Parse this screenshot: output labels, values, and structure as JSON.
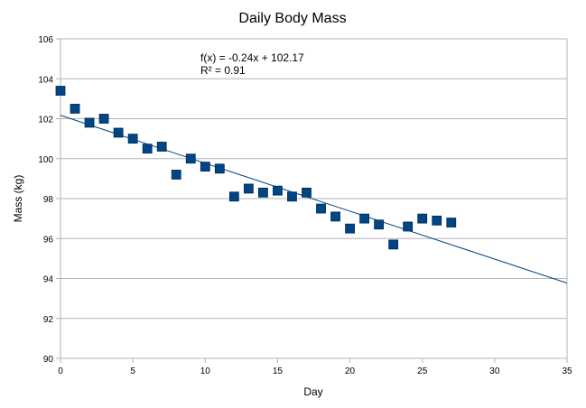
{
  "chart_data": {
    "type": "scatter",
    "title": "Daily Body Mass",
    "xlabel": "Day",
    "ylabel": "Mass (kg)",
    "xlim": [
      0,
      35
    ],
    "ylim": [
      90,
      106
    ],
    "x_ticks": [
      0,
      5,
      10,
      15,
      20,
      25,
      30,
      35
    ],
    "y_ticks": [
      90,
      92,
      94,
      96,
      98,
      100,
      102,
      104,
      106
    ],
    "grid": true,
    "legend": "none",
    "marker_color": "#004586",
    "trendline_color": "#004586",
    "series": [
      {
        "x": [
          0,
          1,
          2,
          3,
          4,
          5,
          6,
          7,
          8,
          9,
          10,
          11,
          12,
          13,
          14,
          15,
          16,
          17,
          18,
          19,
          20,
          21,
          22,
          23,
          24,
          25,
          26,
          27
        ],
        "y": [
          103.4,
          102.5,
          101.8,
          102.0,
          101.3,
          101.0,
          100.5,
          100.6,
          99.2,
          100.0,
          99.6,
          99.5,
          98.1,
          98.5,
          98.3,
          98.4,
          98.1,
          98.3,
          97.5,
          97.1,
          96.5,
          97.0,
          96.7,
          95.7,
          96.6,
          97.0,
          96.9,
          96.8
        ]
      }
    ],
    "trendline": {
      "slope": -0.24,
      "intercept": 102.17,
      "equation_label": "f(x) = -0.24x + 102.17",
      "r2_label": "R² = 0.91"
    }
  }
}
